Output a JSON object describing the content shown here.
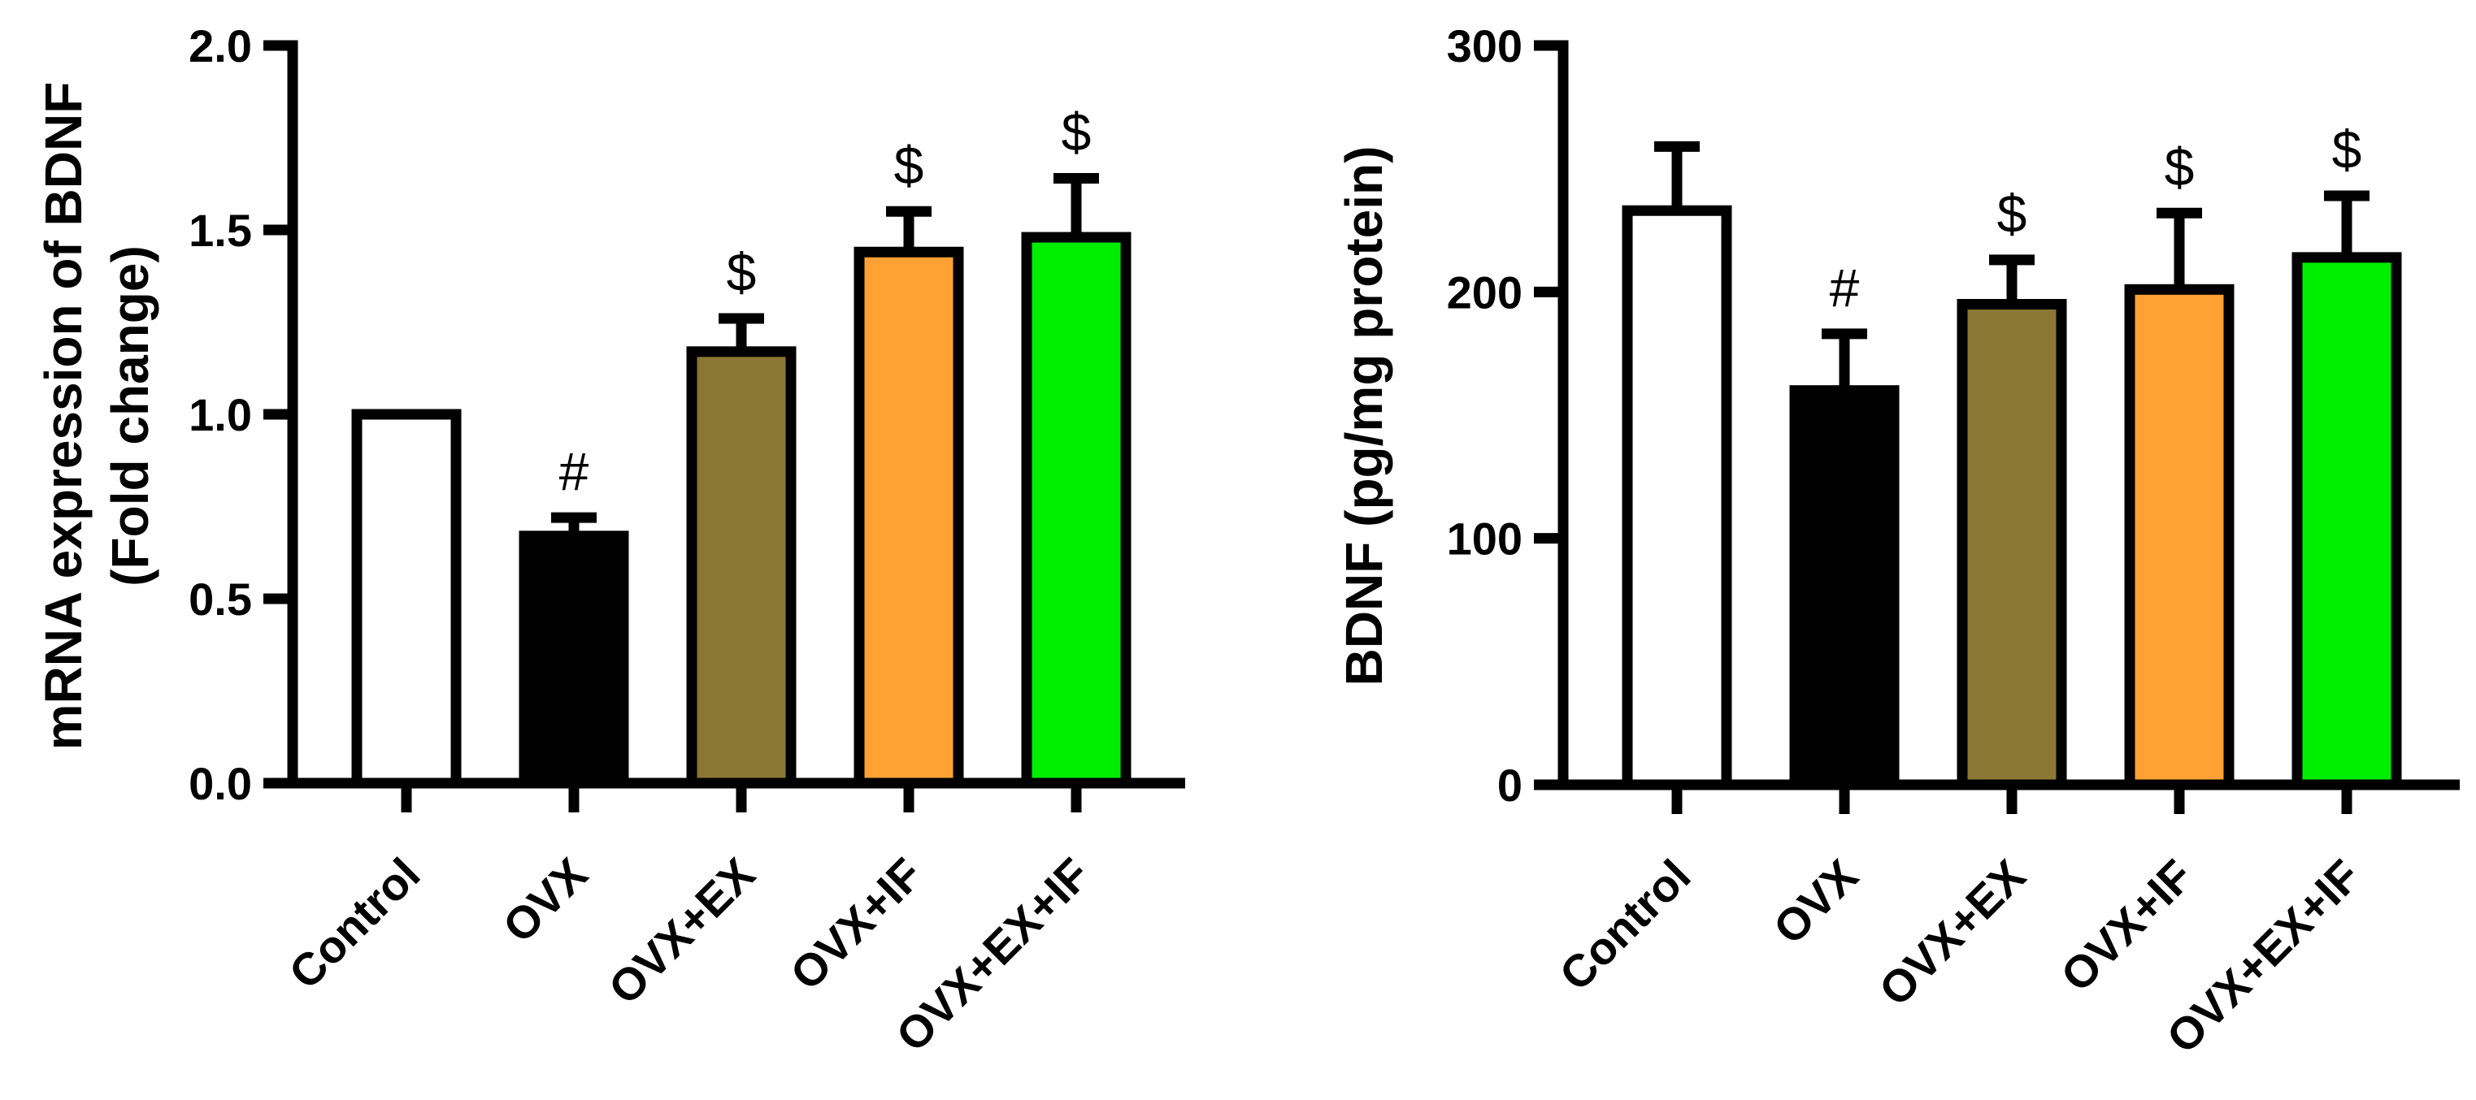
{
  "chart_data": [
    {
      "type": "bar",
      "ylabel_lines": [
        "mRNA expression of BDNF",
        "(Fold change)"
      ],
      "categories": [
        "Control",
        "OVX",
        "OVX+EX",
        "OVX+IF",
        "OVX+EX+IF"
      ],
      "values": [
        1.0,
        0.67,
        1.17,
        1.44,
        1.48
      ],
      "errors": [
        0.0,
        0.05,
        0.09,
        0.11,
        0.16
      ],
      "significance": [
        "",
        "#",
        "$",
        "$",
        "$"
      ],
      "colors": [
        "#ffffff",
        "#000000",
        "#8b7734",
        "#ffa133",
        "#00ee00"
      ],
      "ylim": [
        0,
        2.0
      ],
      "yticks": [
        0.0,
        0.5,
        1.0,
        1.5,
        2.0
      ],
      "ytick_labels": [
        "0.0",
        "0.5",
        "1.0",
        "1.5",
        "2.0"
      ]
    },
    {
      "type": "bar",
      "ylabel_lines": [
        "BDNF (pg/mg protein)"
      ],
      "categories": [
        "Control",
        "OVX",
        "OVX+EX",
        "OVX+IF",
        "OVX+EX+IF"
      ],
      "values": [
        233,
        160,
        195,
        201,
        214
      ],
      "errors": [
        26,
        23,
        18,
        31,
        25
      ],
      "significance": [
        "",
        "#",
        "$",
        "$",
        "$"
      ],
      "colors": [
        "#ffffff",
        "#000000",
        "#8b7734",
        "#ffa133",
        "#00ee00"
      ],
      "ylim": [
        0,
        300
      ],
      "yticks": [
        0,
        100,
        200,
        300
      ],
      "ytick_labels": [
        "0",
        "100",
        "200",
        "300"
      ]
    }
  ]
}
